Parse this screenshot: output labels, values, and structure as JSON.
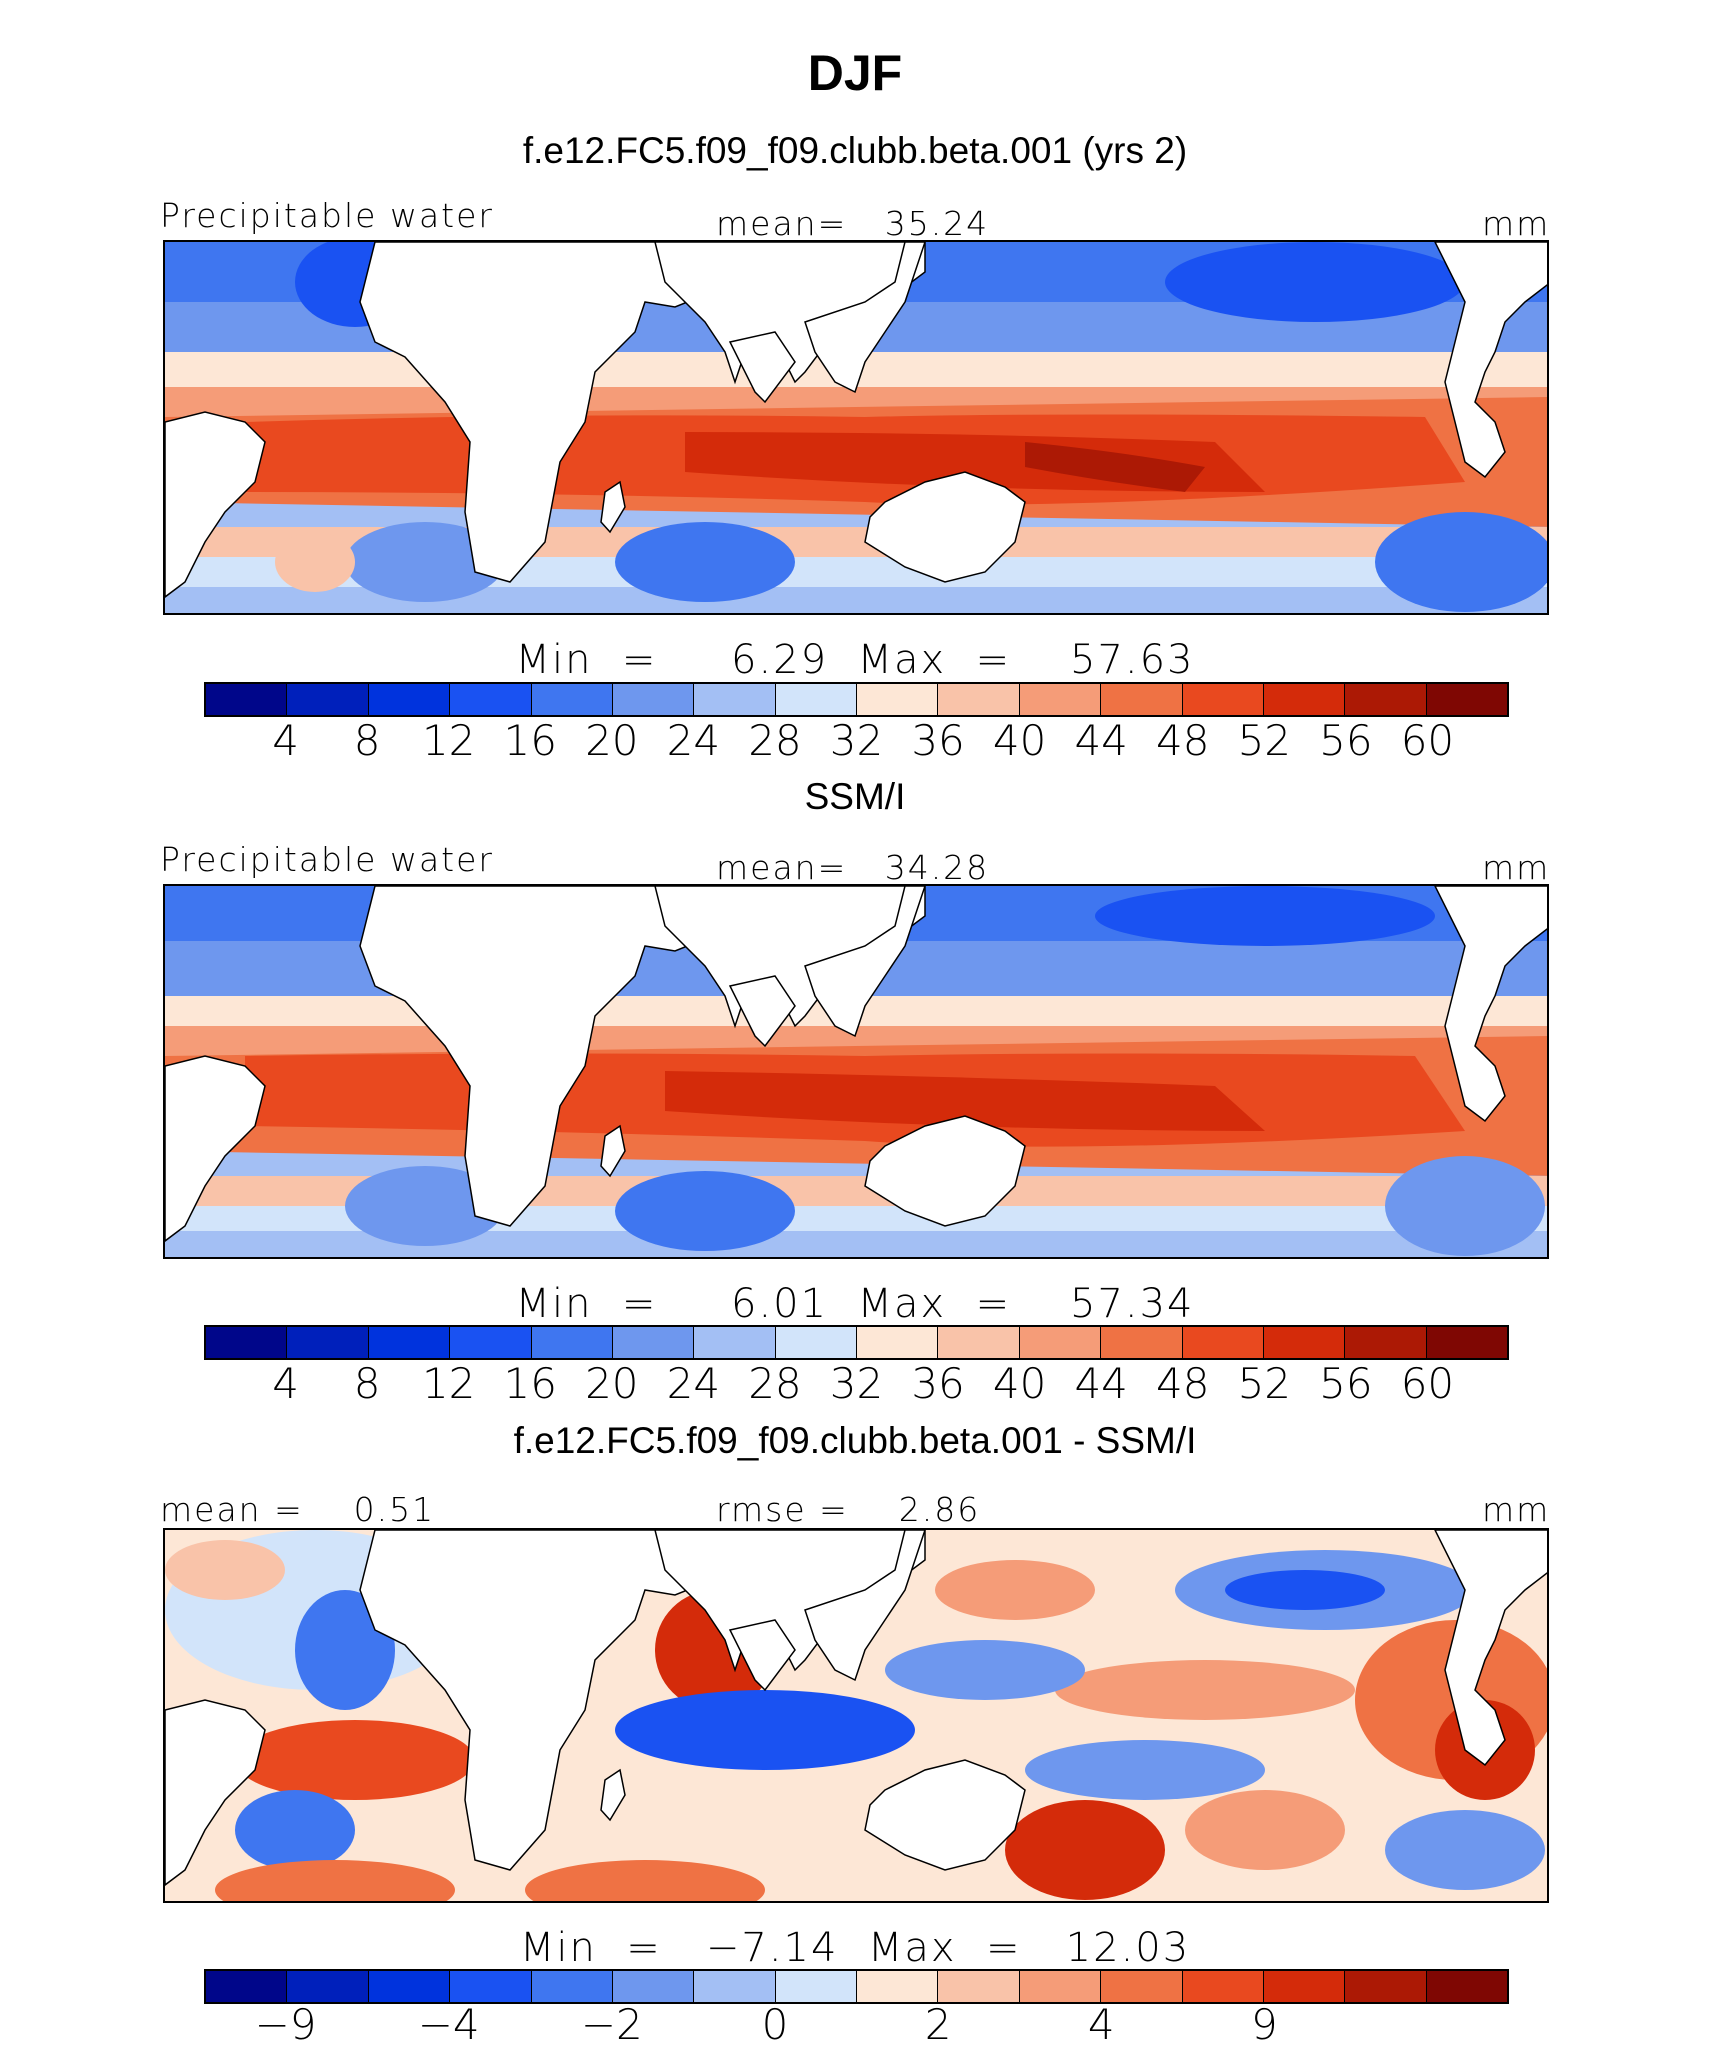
{
  "figure": {
    "title": "DJF"
  },
  "panels": [
    {
      "subtitle": "f.e12.FC5.f09_f09.clubb.beta.001 (yrs 2)",
      "left_label": "Precipitable water",
      "center_label": "mean=   35.24",
      "right_label": "mm",
      "minmax": "Min  =     6.29  Max  =    57.63",
      "colorbar": {
        "colors": [
          "#00068a",
          "#0020bb",
          "#0033dd",
          "#1a52f2",
          "#3f76f0",
          "#6e97ee",
          "#a3bff4",
          "#d2e4fa",
          "#fde7d6",
          "#f9c3a9",
          "#f59c78",
          "#ef7244",
          "#e9491f",
          "#d42b0a",
          "#ac1905",
          "#7f0703"
        ],
        "ticks": [
          "4",
          "8",
          "12",
          "16",
          "20",
          "24",
          "28",
          "32",
          "36",
          "40",
          "44",
          "48",
          "52",
          "56",
          "60"
        ]
      }
    },
    {
      "subtitle": "SSM/I",
      "left_label": "Precipitable water",
      "center_label": "mean=   34.28",
      "right_label": "mm",
      "minmax": "Min  =     6.01  Max  =    57.34",
      "colorbar": {
        "colors": [
          "#00068a",
          "#0020bb",
          "#0033dd",
          "#1a52f2",
          "#3f76f0",
          "#6e97ee",
          "#a3bff4",
          "#d2e4fa",
          "#fde7d6",
          "#f9c3a9",
          "#f59c78",
          "#ef7244",
          "#e9491f",
          "#d42b0a",
          "#ac1905",
          "#7f0703"
        ],
        "ticks": [
          "4",
          "8",
          "12",
          "16",
          "20",
          "24",
          "28",
          "32",
          "36",
          "40",
          "44",
          "48",
          "52",
          "56",
          "60"
        ]
      }
    },
    {
      "subtitle": "f.e12.FC5.f09_f09.clubb.beta.001 - SSM/I",
      "left_label": "mean =    0.51",
      "center_label": "rmse =    2.86",
      "right_label": "mm",
      "minmax": "Min  =   −7.14  Max  =   12.03",
      "colorbar": {
        "colors": [
          "#00068a",
          "#0020bb",
          "#0033dd",
          "#1a52f2",
          "#3f76f0",
          "#6e97ee",
          "#a3bff4",
          "#d2e4fa",
          "#fde7d6",
          "#f9c3a9",
          "#f59c78",
          "#ef7244",
          "#e9491f",
          "#d42b0a",
          "#ac1905",
          "#7f0703"
        ],
        "ticks": [
          "−9",
          "",
          "−4",
          "",
          "−2",
          "",
          "0",
          "",
          "2",
          "",
          "4",
          "",
          "9",
          "",
          ""
        ]
      }
    }
  ]
}
